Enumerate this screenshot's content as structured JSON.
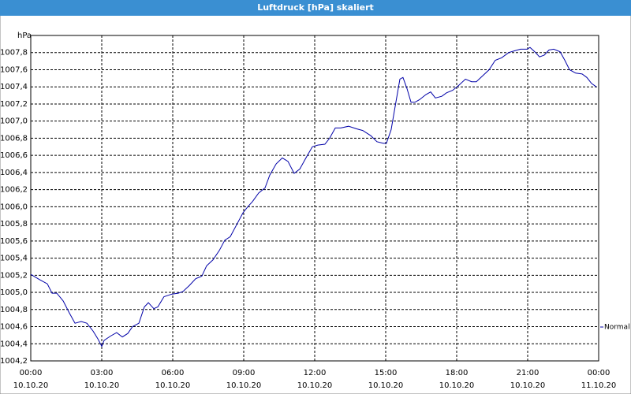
{
  "chart_data": {
    "type": "line",
    "title": "Luftdruck [hPa] skaliert",
    "y_unit": "hPa",
    "x": [
      0,
      0.37,
      0.7,
      0.9,
      1.1,
      1.37,
      1.63,
      1.87,
      2.13,
      2.37,
      2.63,
      2.83,
      3.0,
      3.1,
      3.37,
      3.63,
      3.87,
      4.1,
      4.3,
      4.57,
      4.8,
      4.97,
      5.2,
      5.37,
      5.63,
      5.97,
      6.23,
      6.43,
      6.7,
      6.97,
      7.23,
      7.43,
      7.7,
      7.97,
      8.2,
      8.43,
      8.7,
      8.97,
      9.17,
      9.37,
      9.63,
      9.9,
      10.1,
      10.37,
      10.63,
      10.87,
      11.13,
      11.37,
      11.63,
      11.9,
      12.13,
      12.43,
      12.63,
      12.87,
      13.1,
      13.43,
      13.77,
      14.03,
      14.37,
      14.63,
      14.9,
      15.03,
      15.23,
      15.43,
      15.6,
      15.73,
      15.9,
      16.07,
      16.23,
      16.43,
      16.7,
      16.9,
      17.1,
      17.37,
      17.57,
      17.83,
      18.1,
      18.37,
      18.63,
      18.83,
      19.1,
      19.37,
      19.63,
      19.9,
      20.2,
      20.43,
      20.7,
      20.97,
      21.1,
      21.3,
      21.5,
      21.7,
      21.9,
      22.1,
      22.37,
      22.57,
      22.77,
      23.03,
      23.3,
      23.5,
      23.7,
      23.9
    ],
    "series": [
      {
        "name": "Normal",
        "color": "#0000a8",
        "values": [
          1005.21,
          1005.15,
          1005.1,
          1004.99,
          1004.99,
          1004.9,
          1004.76,
          1004.64,
          1004.66,
          1004.64,
          1004.55,
          1004.46,
          1004.37,
          1004.44,
          1004.49,
          1004.53,
          1004.48,
          1004.52,
          1004.6,
          1004.64,
          1004.83,
          1004.88,
          1004.81,
          1004.83,
          1004.95,
          1004.98,
          1004.99,
          1005.01,
          1005.08,
          1005.16,
          1005.19,
          1005.31,
          1005.38,
          1005.49,
          1005.61,
          1005.65,
          1005.79,
          1005.93,
          1006.0,
          1006.06,
          1006.16,
          1006.22,
          1006.37,
          1006.5,
          1006.57,
          1006.53,
          1006.39,
          1006.44,
          1006.57,
          1006.7,
          1006.72,
          1006.73,
          1006.8,
          1006.92,
          1006.92,
          1006.94,
          1006.91,
          1006.89,
          1006.83,
          1006.76,
          1006.74,
          1006.74,
          1006.9,
          1007.22,
          1007.49,
          1007.51,
          1007.38,
          1007.22,
          1007.22,
          1007.25,
          1007.31,
          1007.34,
          1007.27,
          1007.29,
          1007.33,
          1007.36,
          1007.42,
          1007.49,
          1007.46,
          1007.46,
          1007.53,
          1007.6,
          1007.71,
          1007.74,
          1007.8,
          1007.82,
          1007.84,
          1007.84,
          1007.86,
          1007.81,
          1007.75,
          1007.77,
          1007.83,
          1007.84,
          1007.81,
          1007.71,
          1007.6,
          1007.56,
          1007.55,
          1007.51,
          1007.44,
          1007.4
        ]
      }
    ],
    "xlim": [
      0,
      24
    ],
    "xticks": [
      {
        "value": 0,
        "label": "00:00",
        "date": "10.10.20"
      },
      {
        "value": 3,
        "label": "03:00",
        "date": "10.10.20"
      },
      {
        "value": 6,
        "label": "06:00",
        "date": "10.10.20"
      },
      {
        "value": 9,
        "label": "09:00",
        "date": "10.10.20"
      },
      {
        "value": 12,
        "label": "12:00",
        "date": "10.10.20"
      },
      {
        "value": 15,
        "label": "15:00",
        "date": "10.10.20"
      },
      {
        "value": 18,
        "label": "18:00",
        "date": "10.10.20"
      },
      {
        "value": 21,
        "label": "21:00",
        "date": "10.10.20"
      },
      {
        "value": 24,
        "label": "00:00",
        "date": "11.10.20"
      }
    ],
    "ylim": [
      1004.2,
      1008.0
    ],
    "yticks": [
      {
        "value": 1004.2,
        "label": "1004,2"
      },
      {
        "value": 1004.4,
        "label": "1004,4"
      },
      {
        "value": 1004.6,
        "label": "1004,6"
      },
      {
        "value": 1004.8,
        "label": "1004,8"
      },
      {
        "value": 1005.0,
        "label": "1005,0"
      },
      {
        "value": 1005.2,
        "label": "1005,2"
      },
      {
        "value": 1005.4,
        "label": "1005,4"
      },
      {
        "value": 1005.6,
        "label": "1005,6"
      },
      {
        "value": 1005.8,
        "label": "1005,8"
      },
      {
        "value": 1006.0,
        "label": "1006,0"
      },
      {
        "value": 1006.2,
        "label": "1006,2"
      },
      {
        "value": 1006.4,
        "label": "1006,4"
      },
      {
        "value": 1006.6,
        "label": "1006,6"
      },
      {
        "value": 1006.8,
        "label": "1006,8"
      },
      {
        "value": 1007.0,
        "label": "1007,0"
      },
      {
        "value": 1007.2,
        "label": "1007,2"
      },
      {
        "value": 1007.4,
        "label": "1007,4"
      },
      {
        "value": 1007.6,
        "label": "1007,6"
      },
      {
        "value": 1007.8,
        "label": "1007,8"
      }
    ],
    "grid": true
  }
}
